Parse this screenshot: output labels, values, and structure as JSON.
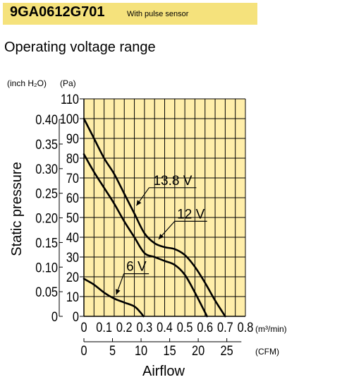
{
  "header": {
    "model": "9GA0612G701",
    "subtitle": "With pulse sensor",
    "band_color": "#f5e27c"
  },
  "section_title": "Operating voltage range",
  "chart_data": {
    "type": "line",
    "title": "",
    "grid_color": "#ffeeaa",
    "grid": true,
    "ylabel": "Static pressure",
    "xlabel": "Airflow",
    "y_units": [
      "(inch H₂O)",
      "(Pa)"
    ],
    "x_units": [
      "(m³/min)",
      "(CFM)"
    ],
    "y_pa_ticks": [
      "0",
      "10",
      "20",
      "30",
      "40",
      "50",
      "60",
      "70",
      "80",
      "90",
      "100",
      "110"
    ],
    "y_pa_range": [
      0,
      110
    ],
    "y_inch_ticks": [
      {
        "pa": 0,
        "label": "0"
      },
      {
        "pa": 12.45,
        "label": "0.05"
      },
      {
        "pa": 24.9,
        "label": "0.10"
      },
      {
        "pa": 37.35,
        "label": "0.15"
      },
      {
        "pa": 49.8,
        "label": "0.20"
      },
      {
        "pa": 62.25,
        "label": "0.25"
      },
      {
        "pa": 74.7,
        "label": "0.30"
      },
      {
        "pa": 87.15,
        "label": "0.35"
      },
      {
        "pa": 99.6,
        "label": "0.40"
      }
    ],
    "x_m3_ticks": [
      "0",
      "0.1",
      "0.2",
      "0.3",
      "0.4",
      "0.5",
      "0.6",
      "0.7",
      "0.8"
    ],
    "x_m3_range": [
      0,
      0.8
    ],
    "x_cfm_ticks": [
      {
        "m3": 0,
        "label": "0"
      },
      {
        "m3": 0.1416,
        "label": "5"
      },
      {
        "m3": 0.2832,
        "label": "10"
      },
      {
        "m3": 0.4248,
        "label": "15"
      },
      {
        "m3": 0.5663,
        "label": "20"
      },
      {
        "m3": 0.7079,
        "label": "25"
      }
    ],
    "series": [
      {
        "name": "13.8 V",
        "points": [
          [
            0,
            100
          ],
          [
            0.05,
            90
          ],
          [
            0.1,
            80
          ],
          [
            0.15,
            72
          ],
          [
            0.2,
            62
          ],
          [
            0.25,
            52
          ],
          [
            0.3,
            42
          ],
          [
            0.35,
            37
          ],
          [
            0.4,
            35
          ],
          [
            0.45,
            34
          ],
          [
            0.5,
            31
          ],
          [
            0.55,
            25
          ],
          [
            0.6,
            17
          ],
          [
            0.65,
            8
          ],
          [
            0.7,
            0
          ]
        ],
        "label_at": [
          0.44,
          66.5
        ],
        "arrow_to": [
          0.26,
          56
        ]
      },
      {
        "name": "12 V",
        "points": [
          [
            0,
            82
          ],
          [
            0.05,
            73
          ],
          [
            0.1,
            65
          ],
          [
            0.15,
            57
          ],
          [
            0.2,
            48
          ],
          [
            0.25,
            40
          ],
          [
            0.3,
            32
          ],
          [
            0.35,
            30
          ],
          [
            0.4,
            28
          ],
          [
            0.45,
            26
          ],
          [
            0.5,
            21
          ],
          [
            0.55,
            12
          ],
          [
            0.6,
            2
          ],
          [
            0.61,
            0
          ]
        ],
        "label_at": [
          0.53,
          49.5
        ],
        "arrow_to": [
          0.37,
          39
        ]
      },
      {
        "name": "6 V",
        "points": [
          [
            0,
            19
          ],
          [
            0.05,
            16
          ],
          [
            0.1,
            12
          ],
          [
            0.15,
            9
          ],
          [
            0.2,
            7
          ],
          [
            0.25,
            5
          ],
          [
            0.28,
            2
          ],
          [
            0.295,
            0
          ]
        ],
        "label_at": [
          0.26,
          23
        ],
        "arrow_to": [
          0.16,
          11
        ]
      }
    ]
  }
}
